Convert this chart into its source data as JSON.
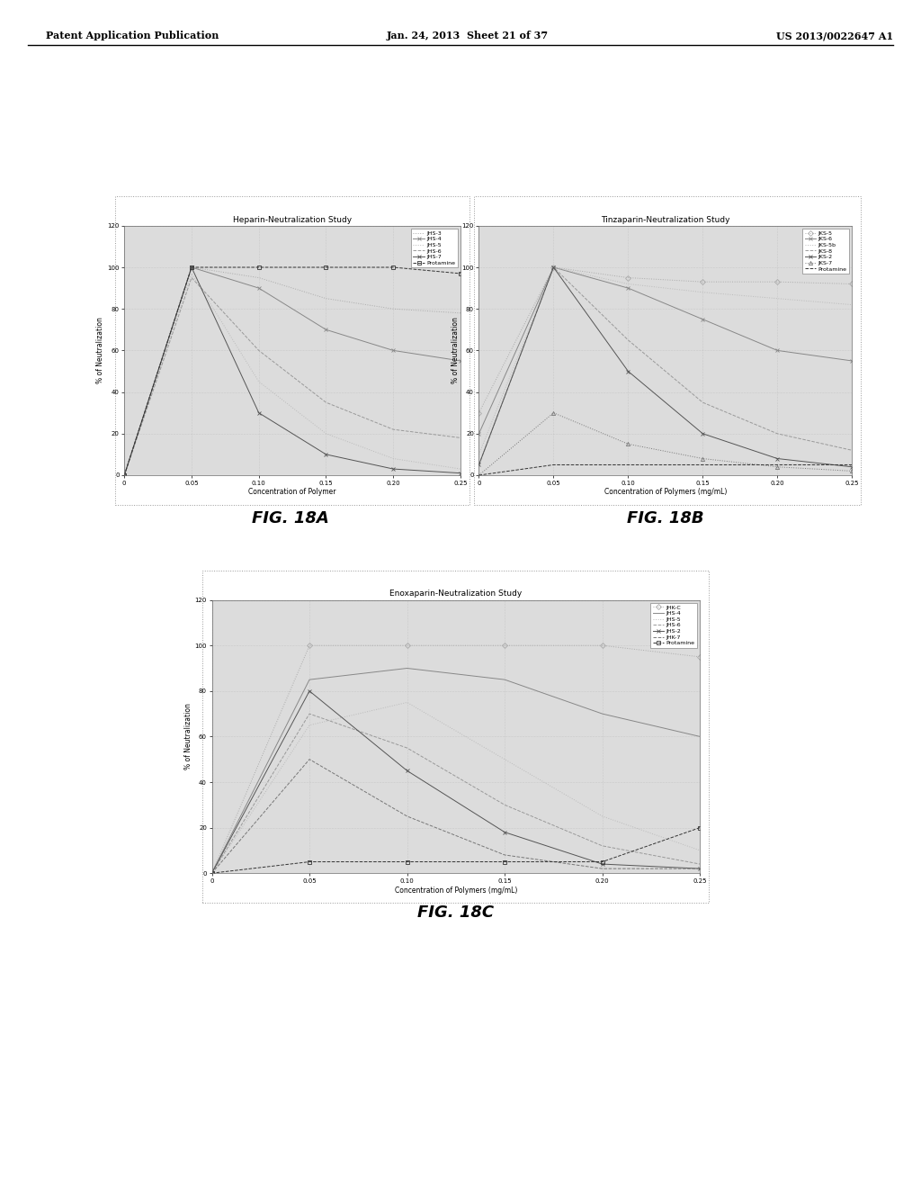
{
  "page_bg": "#ffffff",
  "chart_bg": "#e8e8e8",
  "header_left": "Patent Application Publication",
  "header_mid": "Jan. 24, 2013  Sheet 21 of 37",
  "header_right": "US 2013/0022647 A1",
  "fig_labels": [
    "FIG. 18A",
    "FIG. 18B",
    "FIG. 18C"
  ],
  "fig18a": {
    "title": "Heparin-Neutralization Study",
    "xlabel": "Concentration of Polymer",
    "ylabel": "% of Neutralization",
    "xlim": [
      0,
      0.25
    ],
    "ylim": [
      0,
      120
    ],
    "xticks": [
      0,
      0.05,
      0.1,
      0.15,
      0.2,
      0.25
    ],
    "yticks": [
      0,
      20,
      40,
      60,
      80,
      100,
      120
    ],
    "legend_entries": [
      "JHS-3",
      "JHS-4",
      "JHS-5",
      "JHS-6",
      "JHS-7",
      "Protamine"
    ],
    "series": [
      {
        "label": "JHS-3",
        "x": [
          0,
          0.05,
          0.1,
          0.15,
          0.2,
          0.25
        ],
        "y": [
          0,
          100,
          95,
          85,
          80,
          78
        ],
        "color": "#aaaaaa",
        "ls": "dotted",
        "marker": "none"
      },
      {
        "label": "JHS-4",
        "x": [
          0,
          0.05,
          0.1,
          0.15,
          0.2,
          0.25
        ],
        "y": [
          0,
          100,
          90,
          70,
          60,
          55
        ],
        "color": "#888888",
        "ls": "solid",
        "marker": "x"
      },
      {
        "label": "JHS-5",
        "x": [
          0,
          0.05,
          0.1,
          0.15,
          0.2,
          0.25
        ],
        "y": [
          0,
          97,
          45,
          20,
          8,
          3
        ],
        "color": "#bbbbbb",
        "ls": "dotted",
        "marker": "none"
      },
      {
        "label": "JHS-6",
        "x": [
          0,
          0.05,
          0.1,
          0.15,
          0.2,
          0.25
        ],
        "y": [
          0,
          95,
          60,
          35,
          22,
          18
        ],
        "color": "#999999",
        "ls": "dashed",
        "marker": "none"
      },
      {
        "label": "JHS-7",
        "x": [
          0,
          0.05,
          0.1,
          0.15,
          0.2,
          0.25
        ],
        "y": [
          0,
          100,
          30,
          10,
          3,
          1
        ],
        "color": "#555555",
        "ls": "solid",
        "marker": "x"
      },
      {
        "label": "Protamine",
        "x": [
          0,
          0.05,
          0.1,
          0.15,
          0.2,
          0.25
        ],
        "y": [
          0,
          100,
          100,
          100,
          100,
          97
        ],
        "color": "#333333",
        "ls": "dashed",
        "marker": "square"
      }
    ]
  },
  "fig18b": {
    "title": "Tinzaparin-Neutralization Study",
    "xlabel": "Concentration of Polymers (mg/mL)",
    "ylabel": "% of Neutralization",
    "xlim": [
      0,
      0.25
    ],
    "ylim": [
      0,
      120
    ],
    "xticks": [
      0,
      0.05,
      0.1,
      0.15,
      0.2,
      0.25
    ],
    "yticks": [
      0,
      20,
      40,
      60,
      80,
      100,
      120
    ],
    "legend_entries": [
      "JKS-5",
      "JKS-6",
      "JKS-5b",
      "JKS-8",
      "JKS-2",
      "JKS-7",
      "Protamine"
    ],
    "series": [
      {
        "label": "JKS-5",
        "x": [
          0,
          0.05,
          0.1,
          0.15,
          0.2,
          0.25
        ],
        "y": [
          30,
          100,
          95,
          93,
          93,
          92
        ],
        "color": "#aaaaaa",
        "ls": "dotted",
        "marker": "diamond"
      },
      {
        "label": "JKS-6",
        "x": [
          0,
          0.05,
          0.1,
          0.15,
          0.2,
          0.25
        ],
        "y": [
          20,
          100,
          90,
          75,
          60,
          55
        ],
        "color": "#888888",
        "ls": "solid",
        "marker": "x"
      },
      {
        "label": "JKS-5b",
        "x": [
          0,
          0.05,
          0.1,
          0.15,
          0.2,
          0.25
        ],
        "y": [
          10,
          100,
          92,
          88,
          85,
          82
        ],
        "color": "#bbbbbb",
        "ls": "dotted",
        "marker": "none"
      },
      {
        "label": "JKS-8",
        "x": [
          0,
          0.05,
          0.1,
          0.15,
          0.2,
          0.25
        ],
        "y": [
          5,
          100,
          65,
          35,
          20,
          12
        ],
        "color": "#999999",
        "ls": "dashed",
        "marker": "none"
      },
      {
        "label": "JKS-2",
        "x": [
          0,
          0.05,
          0.1,
          0.15,
          0.2,
          0.25
        ],
        "y": [
          5,
          100,
          50,
          20,
          8,
          4
        ],
        "color": "#555555",
        "ls": "solid",
        "marker": "x"
      },
      {
        "label": "JKS-7",
        "x": [
          0,
          0.05,
          0.1,
          0.15,
          0.2,
          0.25
        ],
        "y": [
          0,
          30,
          15,
          8,
          4,
          2
        ],
        "color": "#777777",
        "ls": "dotted",
        "marker": "triangle"
      },
      {
        "label": "Protamine",
        "x": [
          0,
          0.05,
          0.1,
          0.15,
          0.2,
          0.25
        ],
        "y": [
          0,
          5,
          5,
          5,
          5,
          5
        ],
        "color": "#333333",
        "ls": "dashed",
        "marker": "none"
      }
    ]
  },
  "fig18c": {
    "title": "Enoxaparin-Neutralization Study",
    "xlabel": "Concentration of Polymers (mg/mL)",
    "ylabel": "% of Neutralization",
    "xlim": [
      0,
      0.25
    ],
    "ylim": [
      0,
      120
    ],
    "xticks": [
      0,
      0.05,
      0.1,
      0.15,
      0.2,
      0.25
    ],
    "yticks": [
      0,
      20,
      40,
      60,
      80,
      100,
      120
    ],
    "legend_entries": [
      "JHK-C",
      "JHS-4",
      "JHS-5",
      "JHS-6",
      "JHS-2",
      "JHK-7",
      "Protamine"
    ],
    "series": [
      {
        "label": "JHK-C",
        "x": [
          0,
          0.05,
          0.1,
          0.15,
          0.2,
          0.25
        ],
        "y": [
          0,
          100,
          100,
          100,
          100,
          95
        ],
        "color": "#aaaaaa",
        "ls": "dotted",
        "marker": "diamond"
      },
      {
        "label": "JHS-4",
        "x": [
          0,
          0.05,
          0.1,
          0.15,
          0.2,
          0.25
        ],
        "y": [
          0,
          85,
          90,
          85,
          70,
          60
        ],
        "color": "#888888",
        "ls": "solid",
        "marker": "none"
      },
      {
        "label": "JHS-5",
        "x": [
          0,
          0.05,
          0.1,
          0.15,
          0.2,
          0.25
        ],
        "y": [
          0,
          65,
          75,
          50,
          25,
          10
        ],
        "color": "#bbbbbb",
        "ls": "dotted",
        "marker": "none"
      },
      {
        "label": "JHS-6",
        "x": [
          0,
          0.05,
          0.1,
          0.15,
          0.2,
          0.25
        ],
        "y": [
          0,
          70,
          55,
          30,
          12,
          4
        ],
        "color": "#999999",
        "ls": "dashed",
        "marker": "none"
      },
      {
        "label": "JHS-2",
        "x": [
          0,
          0.05,
          0.1,
          0.15,
          0.2,
          0.25
        ],
        "y": [
          0,
          80,
          45,
          18,
          4,
          2
        ],
        "color": "#555555",
        "ls": "solid",
        "marker": "x"
      },
      {
        "label": "JHK-7",
        "x": [
          0,
          0.05,
          0.1,
          0.15,
          0.2,
          0.25
        ],
        "y": [
          0,
          50,
          25,
          8,
          2,
          2
        ],
        "color": "#777777",
        "ls": "dashed",
        "marker": "none"
      },
      {
        "label": "Protamine",
        "x": [
          0,
          0.05,
          0.1,
          0.15,
          0.2,
          0.25
        ],
        "y": [
          0,
          5,
          5,
          5,
          5,
          20
        ],
        "color": "#333333",
        "ls": "dashed",
        "marker": "square"
      }
    ]
  }
}
